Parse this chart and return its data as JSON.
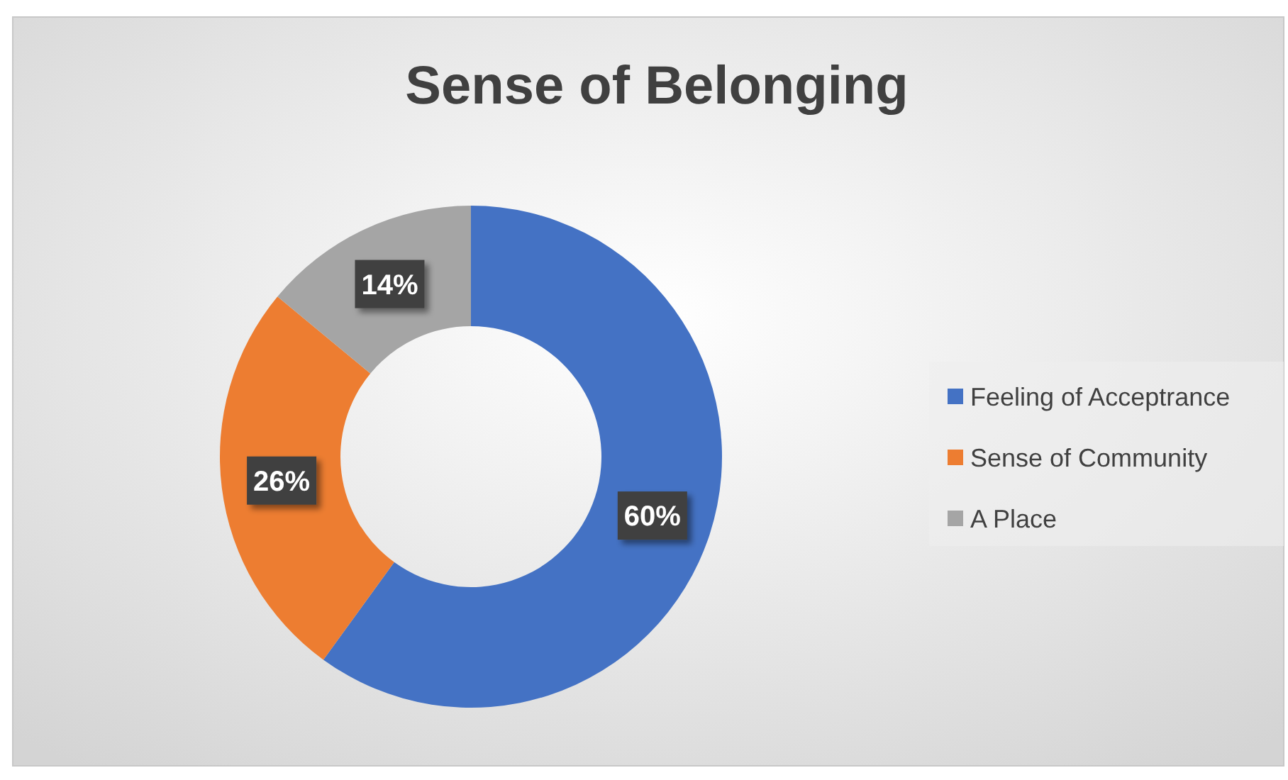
{
  "chart_data": {
    "type": "donut",
    "title": "Sense of Belonging",
    "categories": [
      "Feeling of Acceptrance",
      "Sense of Community",
      "A Place"
    ],
    "values": [
      60,
      26,
      14
    ],
    "colors": [
      "#4472c4",
      "#ed7d31",
      "#a5a5a5"
    ],
    "value_labels": [
      "60%",
      "26%",
      "14%"
    ],
    "legend": "right"
  }
}
